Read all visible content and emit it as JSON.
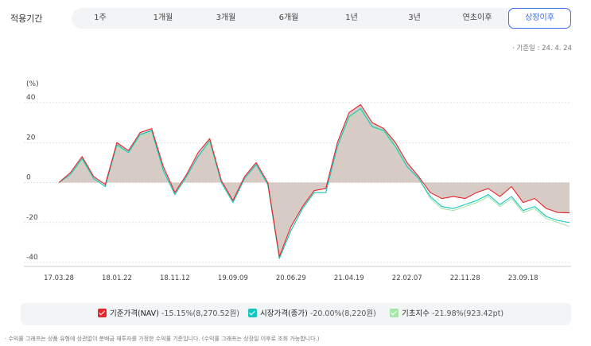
{
  "period": {
    "label": "적용기간",
    "options": [
      "1주",
      "1개월",
      "3개월",
      "6개월",
      "1년",
      "3년",
      "연초이후",
      "상장이후"
    ],
    "selected": "상장이후"
  },
  "base_date": "· 기준일 : 24. 4. 24",
  "legend": [
    {
      "name": "기준가격(NAV)",
      "value": "-15.15%(8,270.52원)",
      "color": "#e8262b"
    },
    {
      "name": "시장가격(종가)",
      "value": "-20.00%(8,220원)",
      "color": "#13c7c0"
    },
    {
      "name": "기초지수",
      "value": "-21.98%(923.42pt)",
      "color": "#a6e6a8"
    }
  ],
  "footnote": "· 수익률 그래프는 상품 유형에 상관없이 분배금 재투자를 가정한 수익률 기준입니다. (수익률 그래프는 상장일 이후로 조회 가능합니다.)",
  "chart_data": {
    "type": "line",
    "ylabel": "(%)",
    "ylim": [
      -40,
      40
    ],
    "yticks": [
      "40",
      "20",
      "0",
      "-20",
      "-40"
    ],
    "xticks": [
      "17.03.28",
      "18.01.22",
      "18.11.12",
      "19.09.09",
      "20.06.29",
      "21.04.19",
      "22.02.07",
      "22.11.28",
      "23.09.18"
    ],
    "x": [
      "17.03.28",
      "17.05",
      "17.07",
      "17.09",
      "17.11",
      "18.01.22",
      "18.03",
      "18.05",
      "18.07",
      "18.09",
      "18.11.12",
      "19.01",
      "19.03",
      "19.05",
      "19.07",
      "19.09.09",
      "19.11",
      "20.01",
      "20.03",
      "20.04",
      "20.06.29",
      "20.08",
      "20.10",
      "20.12",
      "21.02",
      "21.04.19",
      "21.06",
      "21.08",
      "21.10",
      "21.12",
      "22.02.07",
      "22.04",
      "22.06",
      "22.08",
      "22.10",
      "22.11.28",
      "23.01",
      "23.03",
      "23.05",
      "23.07",
      "23.09.18",
      "23.11",
      "24.01",
      "24.03",
      "24.04.24"
    ],
    "series": [
      {
        "name": "기준가격(NAV)",
        "color": "#e8262b",
        "values": [
          0,
          5,
          13,
          3,
          -1,
          20,
          16,
          25,
          27,
          8,
          -5,
          4,
          15,
          22,
          1,
          -9,
          3,
          10,
          0,
          -37,
          -22,
          -12,
          -4,
          -3,
          20,
          35,
          39,
          30,
          27,
          20,
          10,
          3,
          -5,
          -8,
          -7,
          -8,
          -5,
          -3,
          -7,
          -2,
          -10,
          -8,
          -13,
          -15,
          -15.15
        ]
      },
      {
        "name": "시장가격(종가)",
        "color": "#13c7c0",
        "values": [
          0,
          4,
          12,
          2,
          -2,
          19,
          15,
          24,
          26,
          6,
          -6,
          3,
          13,
          21,
          0,
          -10,
          2,
          9,
          -1,
          -38,
          -24,
          -13,
          -5,
          -5,
          18,
          33,
          37,
          28,
          26,
          18,
          8,
          2,
          -7,
          -12,
          -13,
          -11,
          -9,
          -6,
          -11,
          -7,
          -14,
          -12,
          -17,
          -19,
          -20
        ]
      },
      {
        "name": "기초지수",
        "color": "#a6e6a8",
        "values": [
          0,
          4,
          11,
          2,
          -2,
          18,
          15,
          23,
          25,
          6,
          -6,
          3,
          13,
          20,
          0,
          -10,
          2,
          9,
          -1,
          -38,
          -24,
          -13,
          -5,
          -5,
          18,
          32,
          36,
          28,
          25,
          17,
          8,
          2,
          -8,
          -13,
          -14,
          -12,
          -10,
          -7,
          -12,
          -8,
          -15,
          -13,
          -18,
          -20,
          -21.98
        ]
      }
    ]
  }
}
